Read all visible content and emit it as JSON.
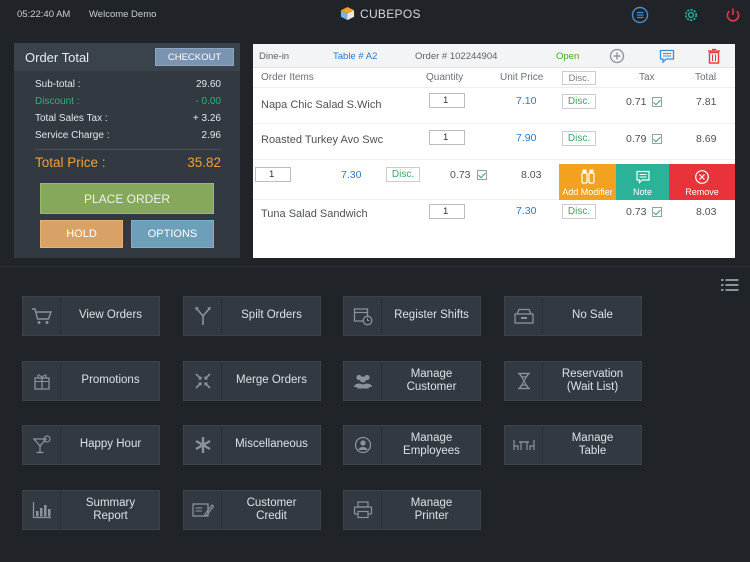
{
  "topbar": {
    "time": "05:22:40 AM",
    "welcome": "Welcome Demo",
    "brand": "CUBEPOS",
    "icons": [
      "menu-icon",
      "settings-icon",
      "power-icon"
    ]
  },
  "order_total": {
    "title": "Order Total",
    "checkout_label": "CHECKOUT",
    "rows": [
      {
        "label": "Sub-total :",
        "value": "29.60"
      },
      {
        "label": "Discount :",
        "value": "- 0.00"
      },
      {
        "label": "Total Sales Tax  :",
        "value": "+ 3.26"
      },
      {
        "label": "Service Charge :",
        "value": "2.96"
      }
    ],
    "total_label": "Total Price :",
    "total_value": "35.82",
    "place_order_label": "PLACE ORDER",
    "hold_label": "HOLD",
    "options_label": "OPTIONS"
  },
  "order": {
    "dine_mode": "Dine-in",
    "table": "Table # A2",
    "order_number": "Order # 102244904",
    "status": "Open",
    "columns": {
      "items": "Order Items",
      "quantity": "Quantity",
      "unit_price": "Unit Price",
      "disc": "Disc.",
      "tax": "Tax",
      "total": "Total"
    },
    "rows": [
      {
        "name": "Napa Chic Salad S.Wich",
        "qty": "1",
        "price": "7.10",
        "disc": "Disc.",
        "tax": "0.71",
        "total": "7.81"
      },
      {
        "name": "Roasted Turkey Avo Swc",
        "qty": "1",
        "price": "7.90",
        "disc": "Disc.",
        "tax": "0.79",
        "total": "8.69"
      },
      {
        "name": "",
        "qty": "1",
        "price": "7.30",
        "disc": "Disc.",
        "tax": "0.73",
        "total": "8.03"
      },
      {
        "name": "Tuna Salad Sandwich",
        "qty": "1",
        "price": "7.30",
        "disc": "Disc.",
        "tax": "0.73",
        "total": "8.03"
      }
    ],
    "actions": {
      "add_modifier": "Add Modifier",
      "note": "Note",
      "remove": "Remove"
    }
  },
  "tiles": [
    {
      "label": "View Orders",
      "icon": "cart-icon"
    },
    {
      "label": "Spilt Orders",
      "icon": "split-icon"
    },
    {
      "label": "Register Shifts",
      "icon": "calendar-clock-icon"
    },
    {
      "label": "No Sale",
      "icon": "cash-drawer-icon"
    },
    {
      "label": "Promotions",
      "icon": "gift-icon"
    },
    {
      "label": "Merge Orders",
      "icon": "merge-icon"
    },
    {
      "label": "Manage\nCustomer",
      "icon": "customers-icon"
    },
    {
      "label": "Reservation\n(Wait List)",
      "icon": "hourglass-icon"
    },
    {
      "label": "Happy Hour",
      "icon": "cocktail-icon"
    },
    {
      "label": "Miscellaneous",
      "icon": "asterisk-icon"
    },
    {
      "label": "Manage\nEmployees",
      "icon": "employee-icon"
    },
    {
      "label": "Manage\nTable",
      "icon": "table-icon"
    },
    {
      "label": "Summary\nReport",
      "icon": "bar-chart-icon"
    },
    {
      "label": "Customer\nCredit",
      "icon": "credit-icon"
    },
    {
      "label": "Manage\nPrinter",
      "icon": "printer-icon"
    }
  ]
}
